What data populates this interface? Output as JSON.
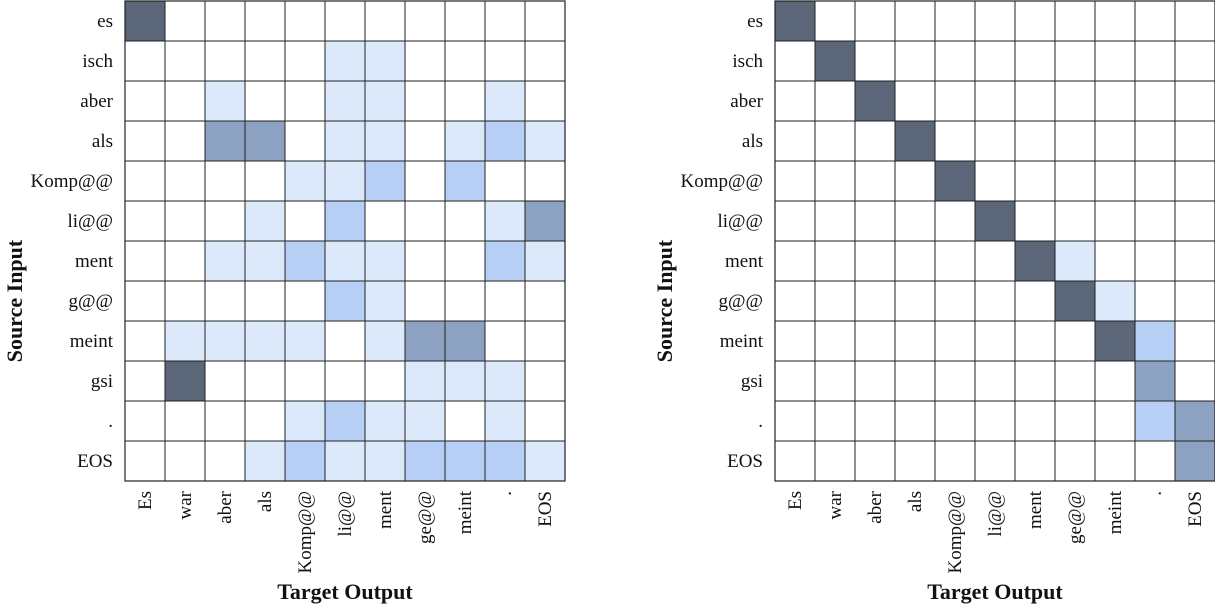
{
  "chart_data": [
    {
      "type": "heatmap",
      "xlabel": "Target Output",
      "ylabel": "Source Input",
      "rows": [
        "es",
        "isch",
        "aber",
        "als",
        "Komp@@",
        "li@@",
        "ment",
        "g@@",
        "meint",
        "gsi",
        ".",
        "EOS"
      ],
      "columns": [
        "Es",
        "war",
        "aber",
        "als",
        "Komp@@",
        "li@@",
        "ment",
        "ge@@",
        "meint",
        ".",
        "EOS"
      ],
      "values": [
        [
          4,
          0,
          0,
          0,
          0,
          0,
          0,
          0,
          0,
          0,
          0
        ],
        [
          0,
          0,
          0,
          0,
          0,
          1,
          1,
          0,
          0,
          0,
          0
        ],
        [
          0,
          0,
          1,
          0,
          0,
          1,
          1,
          0,
          0,
          1,
          0
        ],
        [
          0,
          0,
          3,
          3,
          0,
          1,
          1,
          0,
          1,
          2,
          1
        ],
        [
          0,
          0,
          0,
          0,
          1,
          1,
          2,
          0,
          2,
          0,
          0
        ],
        [
          0,
          0,
          0,
          1,
          0,
          2,
          0,
          0,
          0,
          1,
          3
        ],
        [
          0,
          0,
          1,
          1,
          2,
          1,
          1,
          0,
          0,
          2,
          1
        ],
        [
          0,
          0,
          0,
          0,
          0,
          2,
          1,
          0,
          0,
          0,
          0
        ],
        [
          0,
          1,
          1,
          1,
          1,
          0,
          1,
          3,
          3,
          0,
          0
        ],
        [
          0,
          4,
          0,
          0,
          0,
          0,
          0,
          1,
          1,
          1,
          0
        ],
        [
          0,
          0,
          0,
          0,
          1,
          2,
          1,
          1,
          0,
          1,
          0
        ],
        [
          0,
          0,
          0,
          1,
          2,
          1,
          1,
          2,
          2,
          2,
          1
        ]
      ],
      "colors": [
        "#ffffff",
        "#dce9fb",
        "#b7cff5",
        "#8da2c2",
        "#5b6778"
      ]
    },
    {
      "type": "heatmap",
      "xlabel": "Target Output",
      "ylabel": "Source Input",
      "rows": [
        "es",
        "isch",
        "aber",
        "als",
        "Komp@@",
        "li@@",
        "ment",
        "g@@",
        "meint",
        "gsi",
        ".",
        "EOS"
      ],
      "columns": [
        "Es",
        "war",
        "aber",
        "als",
        "Komp@@",
        "li@@",
        "ment",
        "ge@@",
        "meint",
        ".",
        "EOS"
      ],
      "values": [
        [
          4,
          0,
          0,
          0,
          0,
          0,
          0,
          0,
          0,
          0,
          0
        ],
        [
          0,
          4,
          0,
          0,
          0,
          0,
          0,
          0,
          0,
          0,
          0
        ],
        [
          0,
          0,
          4,
          0,
          0,
          0,
          0,
          0,
          0,
          0,
          0
        ],
        [
          0,
          0,
          0,
          4,
          0,
          0,
          0,
          0,
          0,
          0,
          0
        ],
        [
          0,
          0,
          0,
          0,
          4,
          0,
          0,
          0,
          0,
          0,
          0
        ],
        [
          0,
          0,
          0,
          0,
          0,
          4,
          0,
          0,
          0,
          0,
          0
        ],
        [
          0,
          0,
          0,
          0,
          0,
          0,
          4,
          1,
          0,
          0,
          0
        ],
        [
          0,
          0,
          0,
          0,
          0,
          0,
          0,
          4,
          1,
          0,
          0
        ],
        [
          0,
          0,
          0,
          0,
          0,
          0,
          0,
          0,
          4,
          2,
          0
        ],
        [
          0,
          0,
          0,
          0,
          0,
          0,
          0,
          0,
          0,
          3,
          0
        ],
        [
          0,
          0,
          0,
          0,
          0,
          0,
          0,
          0,
          0,
          2,
          3
        ],
        [
          0,
          0,
          0,
          0,
          0,
          0,
          0,
          0,
          0,
          0,
          3
        ]
      ],
      "colors": [
        "#ffffff",
        "#dce9fb",
        "#b7cff5",
        "#8da2c2",
        "#5b6778"
      ]
    }
  ]
}
